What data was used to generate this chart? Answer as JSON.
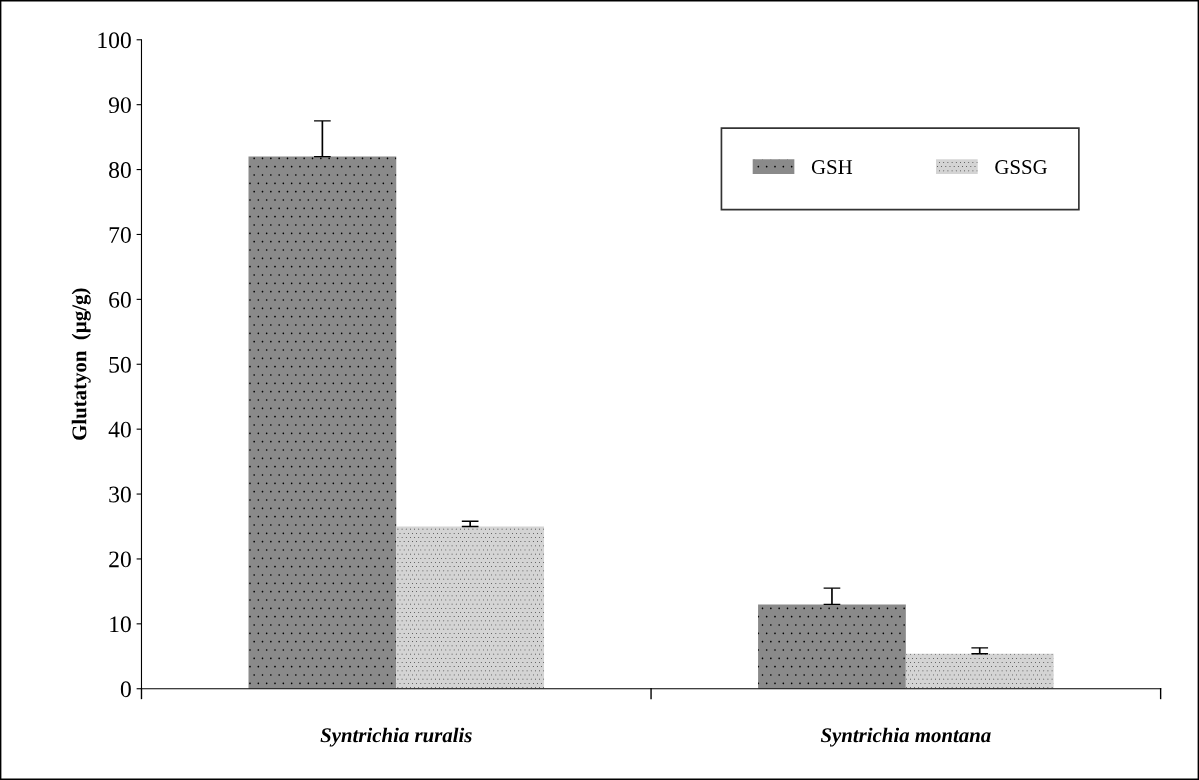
{
  "chart_data": {
    "type": "bar",
    "ylabel": "Glutatyon  (µg/g)",
    "categories": [
      "Syntrichia ruralis",
      "Syntrichia montana"
    ],
    "series": [
      {
        "name": "GSH",
        "color": "#8a8a8a",
        "values": [
          82,
          13
        ],
        "errors": [
          [
            82,
            87.5
          ],
          [
            13,
            15.5
          ]
        ]
      },
      {
        "name": "GSSG",
        "color": "#d4d4d4",
        "values": [
          25,
          5.4
        ],
        "errors": [
          [
            25,
            25.8
          ],
          [
            5.4,
            6.3
          ]
        ]
      }
    ],
    "ylim": [
      0,
      100
    ],
    "yticks": [
      0,
      10,
      20,
      30,
      40,
      50,
      60,
      70,
      80,
      90,
      100
    ],
    "grid": false,
    "legend": "top right"
  }
}
